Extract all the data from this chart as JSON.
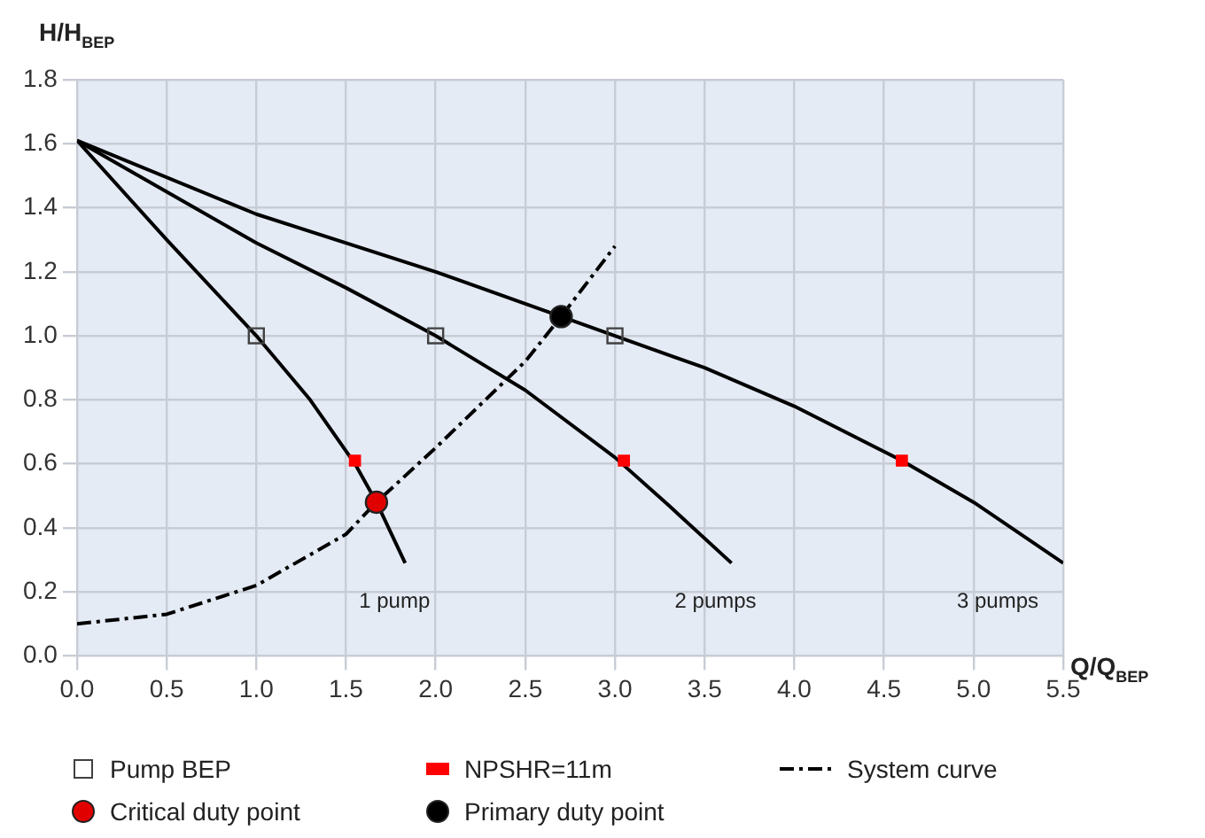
{
  "chart_data": {
    "type": "line",
    "xlabel": "Q/Q$_{BEP}$",
    "ylabel": "H/H$_{BEP}$",
    "xlim": [
      0,
      5.5
    ],
    "ylim": [
      0,
      1.8
    ],
    "xticks": [
      {
        "value": 0,
        "label": "0.0"
      },
      {
        "value": 0.5,
        "label": "0.5"
      },
      {
        "value": 1,
        "label": "1.0"
      },
      {
        "value": 1.5,
        "label": "1.5"
      },
      {
        "value": 2,
        "label": "2.0"
      },
      {
        "value": 2.5,
        "label": "2.5"
      },
      {
        "value": 3,
        "label": "3.0"
      },
      {
        "value": 3.5,
        "label": "3.5"
      },
      {
        "value": 4,
        "label": "4.0"
      },
      {
        "value": 4.5,
        "label": "4.5"
      },
      {
        "value": 5,
        "label": "5.0"
      },
      {
        "value": 5.5,
        "label": "5.5"
      }
    ],
    "yticks": [
      {
        "value": 0,
        "label": "0.0"
      },
      {
        "value": 0.2,
        "label": "0.2"
      },
      {
        "value": 0.4,
        "label": "0.4"
      },
      {
        "value": 0.6,
        "label": "0.6"
      },
      {
        "value": 0.8,
        "label": "0.8"
      },
      {
        "value": 1,
        "label": "1.0"
      },
      {
        "value": 1.2,
        "label": "1.2"
      },
      {
        "value": 1.4,
        "label": "1.4"
      },
      {
        "value": 1.6,
        "label": "1.6"
      },
      {
        "value": 1.8,
        "label": "1.8"
      }
    ],
    "grid": true,
    "legend": "bottom",
    "series": [
      {
        "type": "line",
        "color": "#000000",
        "x": [
          0,
          0.5,
          1.0,
          1.3,
          1.55,
          1.67,
          1.83
        ],
        "values": [
          1.61,
          1.3,
          1.0,
          0.8,
          0.6,
          0.48,
          0.29
        ]
      },
      {
        "type": "line",
        "color": "#000000",
        "x": [
          0,
          0.5,
          1.0,
          1.5,
          2.0,
          2.5,
          3.0,
          3.3,
          3.65
        ],
        "values": [
          1.61,
          1.45,
          1.29,
          1.15,
          1.0,
          0.83,
          0.62,
          0.47,
          0.29
        ]
      },
      {
        "type": "line",
        "color": "#000000",
        "x": [
          0,
          1,
          2,
          2.7,
          3,
          3.5,
          4,
          4.6,
          5,
          5.5
        ],
        "values": [
          1.61,
          1.38,
          1.2,
          1.06,
          1.0,
          0.9,
          0.78,
          0.61,
          0.48,
          0.29
        ]
      },
      {
        "type": "scatter",
        "name": "Pump BEP",
        "color": "#404040",
        "marker": "square",
        "x": [
          1,
          2,
          3
        ],
        "values": [
          1.0,
          1.0,
          1.0
        ]
      },
      {
        "type": "scatter",
        "name": "NPSHR=11m",
        "color": "#ff0000",
        "marker": "square",
        "x": [
          1.55,
          3.05,
          4.6
        ],
        "values": [
          0.61,
          0.61,
          0.61
        ]
      },
      {
        "type": "line",
        "name": "System curve",
        "color": "#000000",
        "line_style": "dashed",
        "x": [
          0,
          0.5,
          1,
          1.5,
          1.67,
          2,
          2.5,
          2.7,
          3
        ],
        "values": [
          0.1,
          0.13,
          0.22,
          0.38,
          0.48,
          0.65,
          0.92,
          1.06,
          1.28
        ]
      },
      {
        "type": "scatter",
        "name": "Critical duty point",
        "color": "#e00000",
        "marker": "circle",
        "x": [
          1.67
        ],
        "values": [
          0.48
        ]
      },
      {
        "type": "scatter",
        "name": "Primary duty point",
        "color": "#000000",
        "marker": "circle",
        "x": [
          2.7
        ],
        "values": [
          1.06
        ]
      }
    ],
    "annotations": [
      {
        "text": "1 pump",
        "x": 1.83,
        "y": 0.29
      },
      {
        "text": "2 pumps",
        "x": 3.65,
        "y": 0.29
      },
      {
        "text": "3 pumps",
        "x": 5.5,
        "y": 0.29
      }
    ]
  }
}
